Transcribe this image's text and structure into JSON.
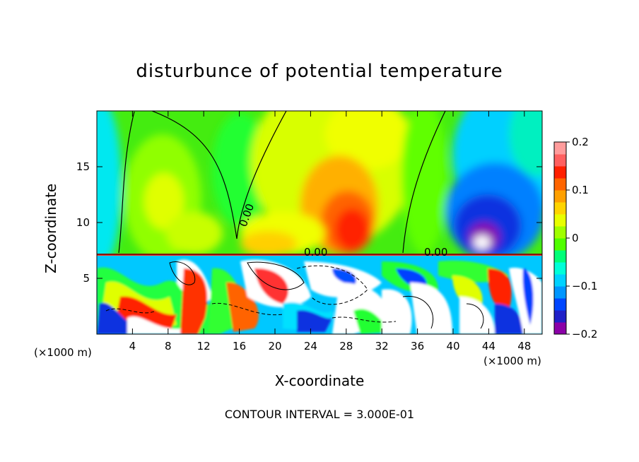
{
  "chart_data": {
    "type": "heatmap",
    "title": "disturbunce of potential temperature",
    "xlabel": "X-coordinate",
    "ylabel": "Z-coordinate",
    "x_unit_label_left": "(×1000 m)",
    "x_unit_label_right": "(×1000 m)",
    "footer": "CONTOUR INTERVAL = 3.000E-01",
    "xlim": [
      0,
      50
    ],
    "ylim": [
      0,
      20
    ],
    "x_ticks": [
      4,
      8,
      12,
      16,
      20,
      24,
      28,
      32,
      36,
      40,
      44,
      48
    ],
    "x_tick_labels": [
      "4",
      "8",
      "12",
      "16",
      "20",
      "24",
      "28",
      "32",
      "36",
      "40",
      "44",
      "48"
    ],
    "y_ticks": [
      5,
      10,
      15
    ],
    "y_tick_labels": [
      "5",
      "10",
      "15"
    ],
    "colorbar": {
      "min": -0.2,
      "max": 0.2,
      "tick_values": [
        0.2,
        0.1,
        0,
        -0.1,
        -0.2
      ],
      "tick_labels": [
        "0.2",
        "0.1",
        "0",
        "−0.1",
        "−0.2"
      ],
      "colors": [
        "#8b00a8",
        "#2020c8",
        "#0046ff",
        "#0096ff",
        "#00d2ff",
        "#00ffd8",
        "#00ff78",
        "#50ff00",
        "#a0ff00",
        "#e8ff00",
        "#ffd400",
        "#ffa000",
        "#ff6400",
        "#ff2000",
        "#ff6060",
        "#ff9c9c"
      ]
    },
    "contour_labels": [
      "0.00",
      "0.00",
      "0.00"
    ],
    "inversion_height": 7.2
  }
}
